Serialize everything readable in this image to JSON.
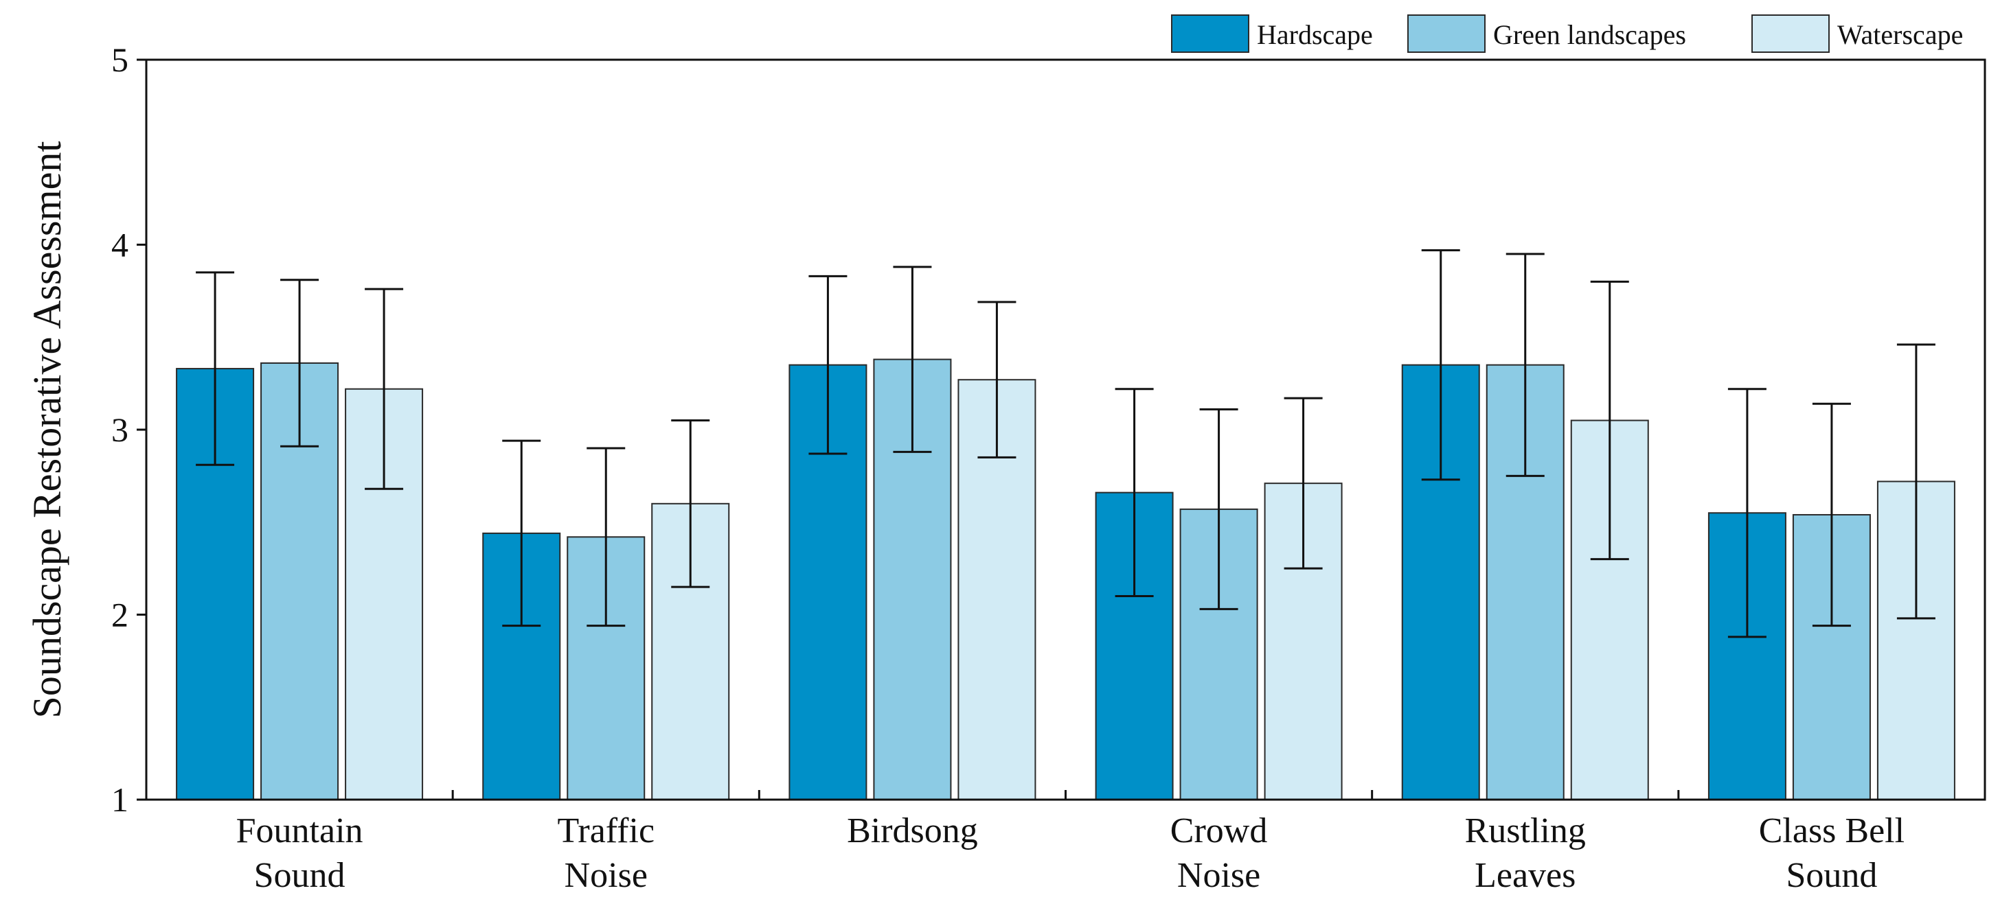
{
  "chart_data": {
    "type": "bar",
    "title": "",
    "xlabel": "",
    "ylabel": "Soundscape Restorative Assessment",
    "ylim": [
      1,
      5
    ],
    "yticks": [
      1,
      2,
      3,
      4,
      5
    ],
    "grid": false,
    "legend_position": "top-right",
    "categories": [
      [
        "Fountain",
        "Sound"
      ],
      [
        "Traffic",
        "Noise"
      ],
      [
        "Birdsong"
      ],
      [
        "Crowd",
        "Noise"
      ],
      [
        "Rustling",
        "Leaves"
      ],
      [
        "Class Bell",
        "Sound"
      ]
    ],
    "series": [
      {
        "name": "Hardscape",
        "color": "#0090c8",
        "values": [
          3.33,
          2.44,
          3.35,
          2.66,
          3.35,
          2.55
        ],
        "error_low": [
          2.81,
          1.94,
          2.87,
          2.1,
          2.73,
          1.88
        ],
        "error_high": [
          3.85,
          2.94,
          3.83,
          3.22,
          3.97,
          3.22
        ]
      },
      {
        "name": "Green landscapes",
        "color": "#8ccbe4",
        "values": [
          3.36,
          2.42,
          3.38,
          2.57,
          3.35,
          2.54
        ],
        "error_low": [
          2.91,
          1.94,
          2.88,
          2.03,
          2.75,
          1.94
        ],
        "error_high": [
          3.81,
          2.9,
          3.88,
          3.11,
          3.95,
          3.14
        ]
      },
      {
        "name": "Waterscape",
        "color": "#d2ebf5",
        "values": [
          3.22,
          2.6,
          3.27,
          2.71,
          3.05,
          2.72
        ],
        "error_low": [
          2.68,
          2.15,
          2.85,
          2.25,
          2.3,
          1.98
        ],
        "error_high": [
          3.76,
          3.05,
          3.69,
          3.17,
          3.8,
          3.46
        ]
      }
    ]
  }
}
